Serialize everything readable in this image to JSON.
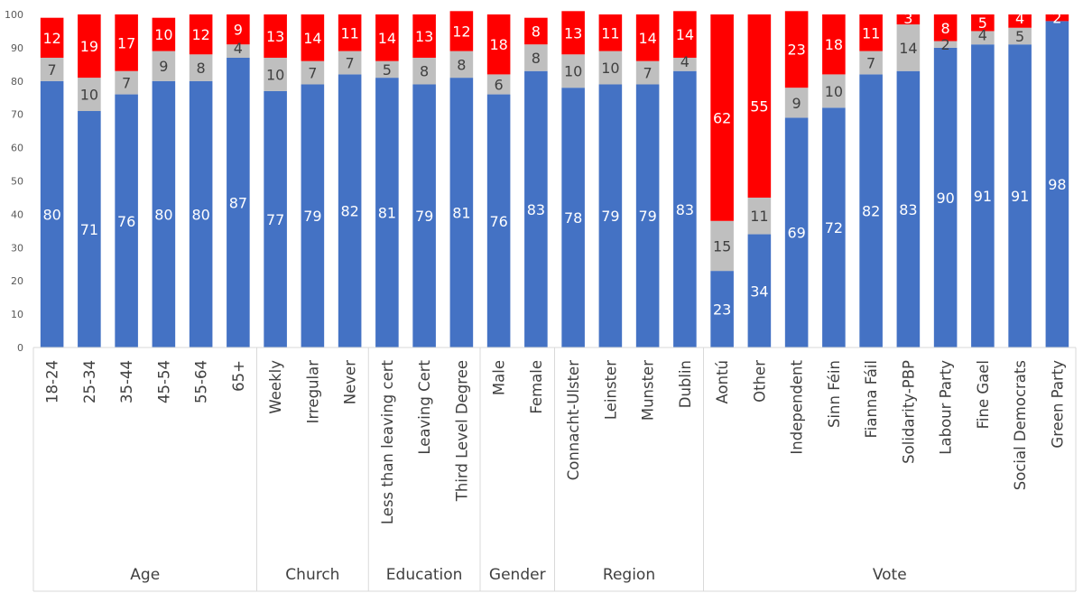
{
  "chart_data": {
    "type": "bar",
    "stacked": true,
    "ylim": [
      0,
      100
    ],
    "yticks": [
      0,
      10,
      20,
      30,
      40,
      50,
      60,
      70,
      80,
      90,
      100
    ],
    "grid": false,
    "legend": "none",
    "categories": [
      "18-24",
      "25-34",
      "35-44",
      "45-54",
      "55-64",
      "65+",
      "Weekly",
      "Irregular",
      "Never",
      "Less than leaving cert",
      "Leaving Cert",
      "Third Level Degree",
      "Male",
      "Female",
      "Connacht-Ulster",
      "Leinster",
      "Munster",
      "Dublin",
      "Aontú",
      "Other",
      "Independent",
      "Sinn Féin",
      "Fianna Fáil",
      "Solidarity-PBP",
      "Labour Party",
      "Fine Gael",
      "Social Democrats",
      "Green Party"
    ],
    "groups": [
      {
        "label": "Age",
        "start": 0,
        "end": 5
      },
      {
        "label": "Church",
        "start": 6,
        "end": 8
      },
      {
        "label": "Education",
        "start": 9,
        "end": 11
      },
      {
        "label": "Gender",
        "start": 12,
        "end": 13
      },
      {
        "label": "Region",
        "start": 14,
        "end": 17
      },
      {
        "label": "Vote",
        "start": 18,
        "end": 27
      }
    ],
    "series": [
      {
        "color": "#4472c4",
        "label_color": "#ffffff",
        "values": [
          80,
          71,
          76,
          80,
          80,
          87,
          77,
          79,
          82,
          81,
          79,
          81,
          76,
          83,
          78,
          79,
          79,
          83,
          23,
          34,
          69,
          72,
          82,
          83,
          90,
          91,
          91,
          98
        ]
      },
      {
        "color": "#bfbfbf",
        "label_color": "#404040",
        "values": [
          7,
          10,
          7,
          9,
          8,
          4,
          10,
          7,
          7,
          5,
          8,
          8,
          6,
          8,
          10,
          10,
          7,
          4,
          15,
          11,
          9,
          10,
          7,
          14,
          2,
          4,
          5,
          0
        ]
      },
      {
        "color": "#ff0000",
        "label_color": "#ffffff",
        "values": [
          12,
          19,
          17,
          10,
          12,
          9,
          13,
          14,
          11,
          14,
          13,
          12,
          18,
          8,
          13,
          11,
          14,
          14,
          62,
          55,
          23,
          18,
          11,
          3,
          8,
          5,
          4,
          2
        ]
      }
    ]
  }
}
